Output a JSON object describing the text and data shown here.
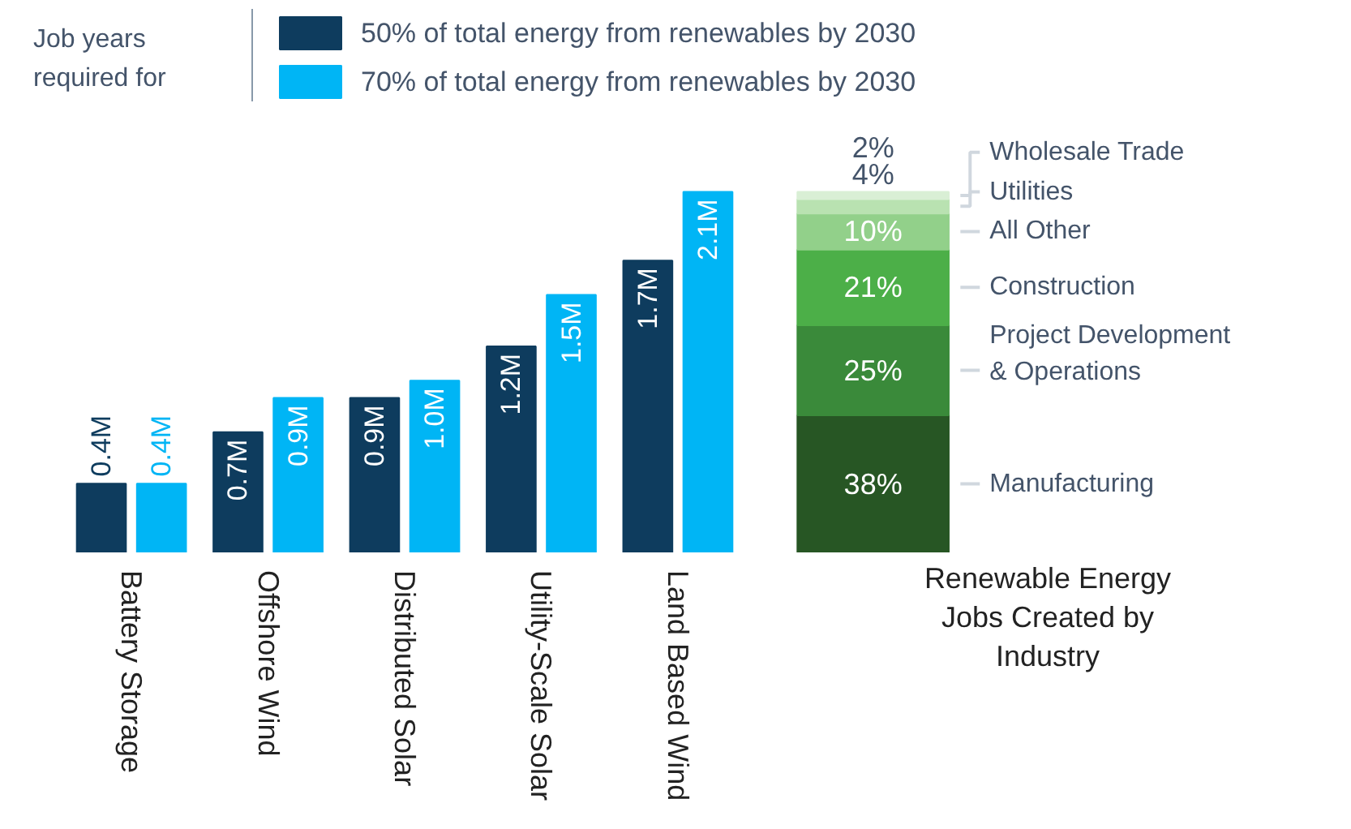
{
  "chart_data": [
    {
      "type": "bar",
      "legend_title": "Job years required for",
      "legend": "top",
      "categories": [
        "Battery Storage",
        "Offshore Wind",
        "Distributed Solar",
        "Utility-Scale Solar",
        "Land Based Wind"
      ],
      "series": [
        {
          "name": "50% of total energy from renewables by 2030",
          "color": "#0e3c5e",
          "values": [
            0.4,
            0.7,
            0.9,
            1.2,
            1.7
          ],
          "value_labels": [
            "0.4M",
            "0.7M",
            "0.9M",
            "1.2M",
            "1.7M"
          ]
        },
        {
          "name": "70% of total energy from renewables by 2030",
          "color": "#00b5f5",
          "values": [
            0.4,
            0.9,
            1.0,
            1.5,
            2.1
          ],
          "value_labels": [
            "0.4M",
            "0.9M",
            "1.0M",
            "1.5M",
            "2.1M"
          ]
        }
      ]
    },
    {
      "type": "bar",
      "stacked": true,
      "xlabel": "Renewable Energy Jobs Created by Industry",
      "categories": [
        null
      ],
      "series": [
        {
          "name": "Manufacturing",
          "color": "#275624",
          "values": [
            38
          ],
          "value_labels": [
            "38%"
          ]
        },
        {
          "name": "Project Development & Operations",
          "color": "#3a8a3a",
          "values": [
            25
          ],
          "value_labels": [
            "25%"
          ]
        },
        {
          "name": "Construction",
          "color": "#4caf48",
          "values": [
            21
          ],
          "value_labels": [
            "21%"
          ]
        },
        {
          "name": "All Other",
          "color": "#92d08a",
          "values": [
            10
          ],
          "value_labels": [
            "10%"
          ]
        },
        {
          "name": "Utilities",
          "color": "#b9e2b1",
          "values": [
            4
          ],
          "value_labels": [
            "4%"
          ]
        },
        {
          "name": "Wholesale Trade",
          "color": "#d9efd5",
          "values": [
            2
          ],
          "value_labels": [
            "2%"
          ]
        }
      ]
    }
  ]
}
